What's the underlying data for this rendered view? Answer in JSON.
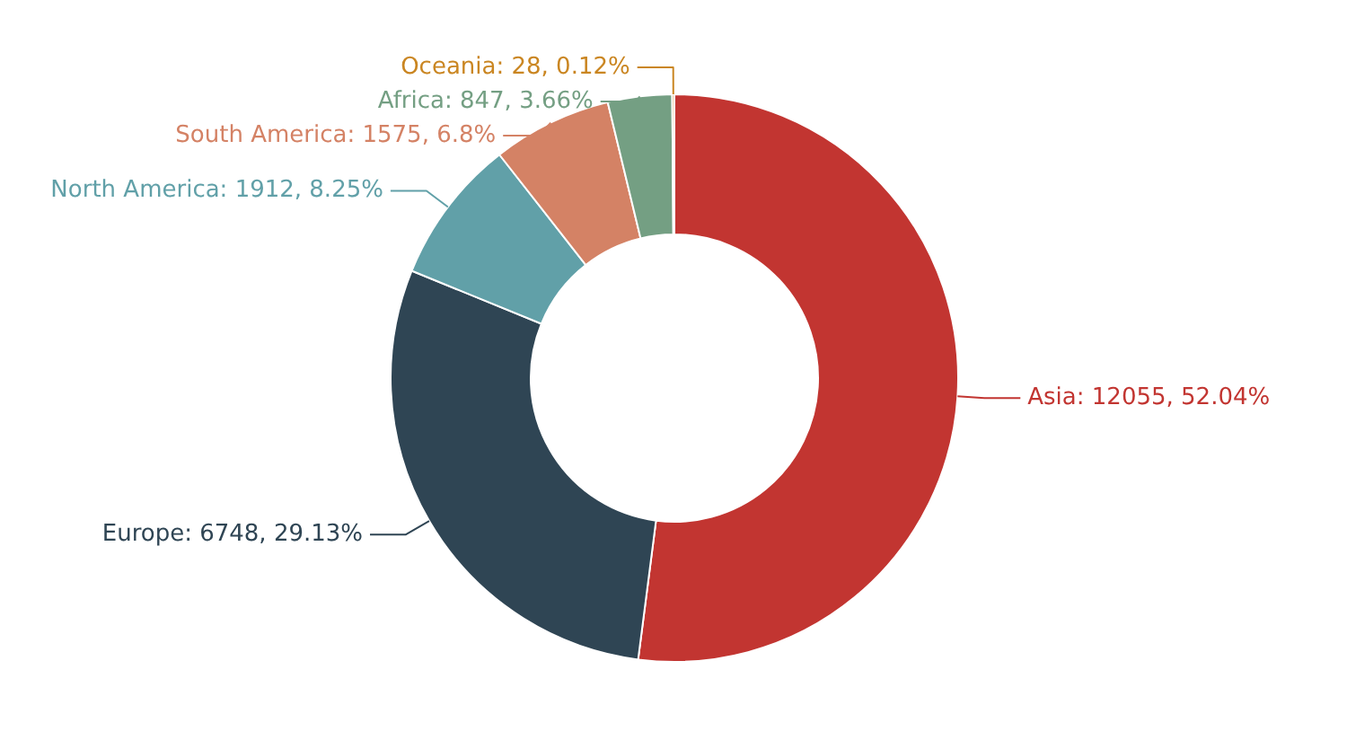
{
  "chart_data": {
    "type": "donut",
    "categories": [
      "Asia",
      "Europe",
      "North America",
      "South America",
      "Africa",
      "Oceania"
    ],
    "values": [
      12055,
      6748,
      1912,
      1575,
      847,
      28
    ],
    "colors": [
      "#c23531",
      "#2f4554",
      "#61a0a8",
      "#d48265",
      "#749f83",
      "#ca8622"
    ],
    "value_labels": [
      "12055, 52.04%",
      "6748, 29.13%",
      "1912, 8.25%",
      "1575, 6.8%",
      "847, 3.66%",
      "28, 0.12%"
    ]
  }
}
